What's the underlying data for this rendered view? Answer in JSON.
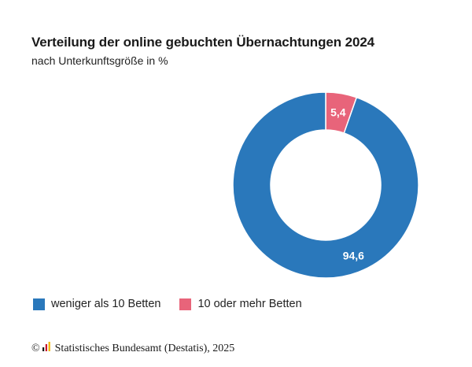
{
  "chart_data": {
    "type": "donut",
    "title": "Verteilung der online gebuchten Übernachtungen 2024",
    "subtitle": "nach Unterkunftsgröße in %",
    "slices": [
      {
        "label": "10 oder mehr Betten",
        "value": 5.4,
        "display": "5,4",
        "color": "#e8647a"
      },
      {
        "label": "weniger als 10 Betten",
        "value": 94.6,
        "display": "94,6",
        "color": "#2a78bb"
      }
    ],
    "legend": {
      "placement": "bottom-left",
      "entries": [
        {
          "label": "weniger als 10 Betten",
          "color": "#2a78bb"
        },
        {
          "label": "10 oder mehr Betten",
          "color": "#e8647a"
        }
      ]
    }
  },
  "source": {
    "copyright": "©",
    "text": "Statistisches Bundesamt (Destatis), 2025"
  },
  "colors": {
    "logo_bar_dark": "#1a1a1a",
    "logo_bar_red": "#c8102e",
    "logo_bar_gold": "#f0b400"
  }
}
